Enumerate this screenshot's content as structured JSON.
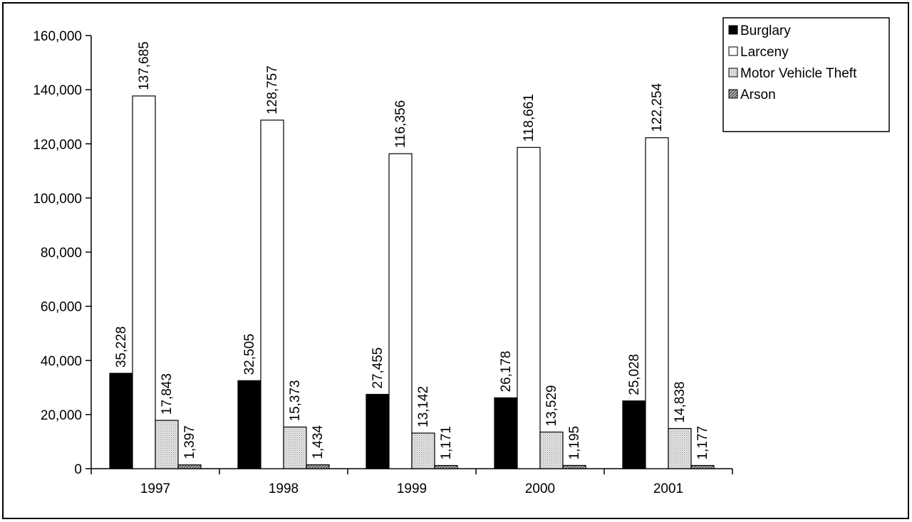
{
  "chart_data": {
    "type": "bar",
    "title": "",
    "xlabel": "",
    "ylabel": "",
    "categories": [
      "1997",
      "1998",
      "1999",
      "2000",
      "2001"
    ],
    "ylim": [
      0,
      160000
    ],
    "yticks": [
      0,
      20000,
      40000,
      60000,
      80000,
      100000,
      120000,
      140000,
      160000
    ],
    "ytick_labels": [
      "0",
      "20,000",
      "40,000",
      "60,000",
      "80,000",
      "100,000",
      "120,000",
      "140,000",
      "160,000"
    ],
    "grid": false,
    "legend_position": "top-right",
    "series": [
      {
        "name": "Burglary",
        "fill": "solid-black",
        "values": [
          35228,
          32505,
          27455,
          26178,
          25028
        ],
        "labels": [
          "35,228",
          "32,505",
          "27,455",
          "26,178",
          "25,028"
        ]
      },
      {
        "name": "Larceny",
        "fill": "white",
        "values": [
          137685,
          128757,
          116356,
          118661,
          122254
        ],
        "labels": [
          "137,685",
          "128,757",
          "116,356",
          "118,661",
          "122,254"
        ]
      },
      {
        "name": "Motor Vehicle Theft",
        "fill": "light-gray-dotted",
        "values": [
          17843,
          15373,
          13142,
          13529,
          14838
        ],
        "labels": [
          "17,843",
          "15,373",
          "13,142",
          "13,529",
          "14,838"
        ]
      },
      {
        "name": "Arson",
        "fill": "dark-hatched",
        "values": [
          1397,
          1434,
          1171,
          1195,
          1177
        ],
        "labels": [
          "1,397",
          "1,434",
          "1,171",
          "1,195",
          "1,177"
        ]
      }
    ]
  }
}
